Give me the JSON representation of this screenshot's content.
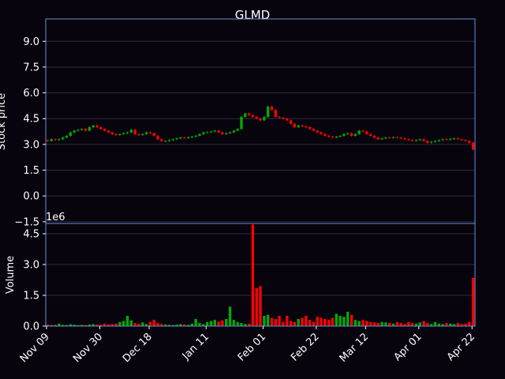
{
  "chart_data": {
    "type": "candlestick",
    "title": "GLMD",
    "colors": {
      "up": "#00aa00",
      "down": "#ff0000",
      "axes": "#6a8edb",
      "grid": "#2c2c3c",
      "background": "#07040d",
      "text": "#ffffff"
    },
    "price_panel": {
      "ylabel": "Stock price",
      "ylim": [
        -1.6,
        10.3
      ],
      "yticks": [
        "−1.5",
        "0.0",
        "1.5",
        "3.0",
        "4.5",
        "6.0",
        "7.5",
        "9.0"
      ],
      "ytick_values": [
        -1.5,
        0,
        1.5,
        3.0,
        4.5,
        6.0,
        7.5,
        9.0
      ],
      "grid": true
    },
    "volume_panel": {
      "ylabel": "Volume",
      "scale_label": "1e6",
      "ylim": [
        0,
        5.0
      ],
      "yticks": [
        "0.0",
        "1.5",
        "3.0",
        "4.5"
      ],
      "ytick_values": [
        0,
        1.5,
        3.0,
        4.5
      ],
      "grid": true
    },
    "xticks": [
      {
        "label": "Nov 09",
        "index": 0
      },
      {
        "label": "Nov 30",
        "index": 14
      },
      {
        "label": "Dec 18",
        "index": 27
      },
      {
        "label": "Jan 11",
        "index": 42
      },
      {
        "label": "Feb 01",
        "index": 57
      },
      {
        "label": "Feb 22",
        "index": 71
      },
      {
        "label": "Mar 12",
        "index": 84
      },
      {
        "label": "Apr 01",
        "index": 98
      },
      {
        "label": "Apr 22",
        "index": 112
      }
    ],
    "n_sessions": 113,
    "closes": [
      3.2,
      3.3,
      3.25,
      3.3,
      3.4,
      3.5,
      3.7,
      3.8,
      3.85,
      3.9,
      3.8,
      4.0,
      4.1,
      4.0,
      3.9,
      3.8,
      3.7,
      3.6,
      3.55,
      3.6,
      3.65,
      3.7,
      3.85,
      3.6,
      3.55,
      3.6,
      3.7,
      3.65,
      3.5,
      3.3,
      3.2,
      3.2,
      3.25,
      3.3,
      3.35,
      3.4,
      3.38,
      3.42,
      3.45,
      3.5,
      3.6,
      3.7,
      3.72,
      3.75,
      3.8,
      3.7,
      3.6,
      3.65,
      3.7,
      3.8,
      3.9,
      4.6,
      4.8,
      4.7,
      4.6,
      4.5,
      4.4,
      4.6,
      5.2,
      5.0,
      4.6,
      4.55,
      4.5,
      4.4,
      4.2,
      4.0,
      4.1,
      4.05,
      4.0,
      3.9,
      3.8,
      3.7,
      3.6,
      3.5,
      3.45,
      3.4,
      3.45,
      3.5,
      3.6,
      3.65,
      3.5,
      3.6,
      3.8,
      3.75,
      3.6,
      3.5,
      3.4,
      3.3,
      3.35,
      3.4,
      3.38,
      3.42,
      3.4,
      3.35,
      3.3,
      3.25,
      3.2,
      3.25,
      3.3,
      3.2,
      3.1,
      3.15,
      3.2,
      3.25,
      3.3,
      3.28,
      3.32,
      3.35,
      3.3,
      3.25,
      3.2,
      3.1,
      2.7
    ],
    "volumes": [
      0.08,
      0.05,
      0.07,
      0.12,
      0.06,
      0.05,
      0.09,
      0.07,
      0.05,
      0.06,
      0.05,
      0.08,
      0.1,
      0.07,
      0.06,
      0.12,
      0.08,
      0.1,
      0.12,
      0.2,
      0.25,
      0.5,
      0.28,
      0.15,
      0.12,
      0.18,
      0.1,
      0.2,
      0.3,
      0.15,
      0.1,
      0.08,
      0.06,
      0.05,
      0.07,
      0.1,
      0.08,
      0.06,
      0.12,
      0.35,
      0.15,
      0.1,
      0.2,
      0.25,
      0.3,
      0.22,
      0.28,
      0.35,
      0.95,
      0.3,
      0.2,
      0.15,
      0.1,
      0.12,
      4.95,
      1.85,
      1.95,
      0.5,
      0.55,
      0.4,
      0.35,
      0.5,
      0.2,
      0.5,
      0.25,
      0.2,
      0.35,
      0.4,
      0.5,
      0.3,
      0.2,
      0.45,
      0.4,
      0.35,
      0.3,
      0.4,
      0.6,
      0.5,
      0.45,
      0.7,
      0.55,
      0.3,
      0.25,
      0.3,
      0.25,
      0.2,
      0.18,
      0.15,
      0.2,
      0.18,
      0.15,
      0.12,
      0.2,
      0.15,
      0.1,
      0.2,
      0.15,
      0.12,
      0.18,
      0.25,
      0.15,
      0.1,
      0.2,
      0.12,
      0.1,
      0.15,
      0.12,
      0.1,
      0.15,
      0.1,
      0.12,
      0.2,
      2.35
    ]
  }
}
